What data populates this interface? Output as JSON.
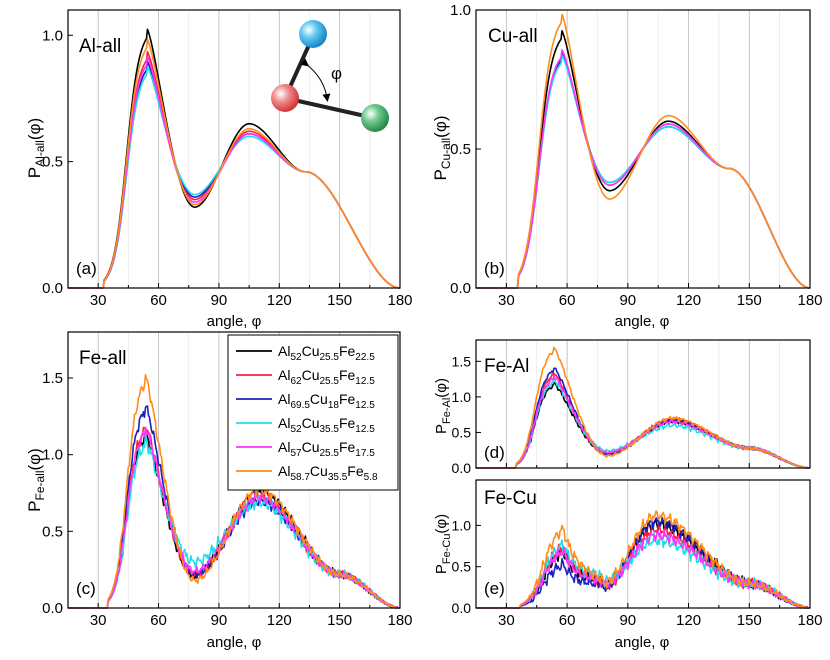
{
  "figure": {
    "colors": {
      "alloy_1": "#000000",
      "alloy_2": "#ff1f3a",
      "alloy_3": "#1f1fbf",
      "alloy_4": "#19e0e8",
      "alloy_5": "#ff33ff",
      "alloy_6": "#ff8c1a"
    },
    "legend_entries": [
      {
        "key": "alloy_1",
        "base": "Al",
        "sub1": "52",
        "mid1": "Cu",
        "sub2": "25.5",
        "mid2": "Fe",
        "sub3": "22.5"
      },
      {
        "key": "alloy_2",
        "base": "Al",
        "sub1": "62",
        "mid1": "Cu",
        "sub2": "25.5",
        "mid2": "Fe",
        "sub3": "12.5"
      },
      {
        "key": "alloy_3",
        "base": "Al",
        "sub1": "69.5",
        "mid1": "Cu",
        "sub2": "18",
        "mid2": "Fe",
        "sub3": "12.5"
      },
      {
        "key": "alloy_4",
        "base": "Al",
        "sub1": "52",
        "mid1": "Cu",
        "sub2": "35.5",
        "mid2": "Fe",
        "sub3": "12.5"
      },
      {
        "key": "alloy_5",
        "base": "Al",
        "sub1": "57",
        "mid1": "Cu",
        "sub2": "25.5",
        "mid2": "Fe",
        "sub3": "17.5"
      },
      {
        "key": "alloy_6",
        "base": "Al",
        "sub1": "58.7",
        "mid1": "Cu",
        "sub2": "35.5",
        "mid2": "Fe",
        "sub3": "5.8"
      }
    ],
    "inset_phi_label": "φ"
  },
  "chart_data": [
    {
      "id": "a",
      "type": "line",
      "panel_label": "(a)",
      "title": "Al-all",
      "xlabel": "angle, φ",
      "ylabel_main": "P",
      "ylabel_sub": "Al-all",
      "ylabel_tail": "(φ)",
      "xlim": [
        15,
        180
      ],
      "ylim": [
        0,
        1.1
      ],
      "xticks": [
        30,
        60,
        90,
        120,
        150,
        180
      ],
      "yticks": [
        0.0,
        0.5,
        1.0
      ],
      "ytick_labels": [
        "0.0",
        "0.5",
        "1.0"
      ],
      "shape": {
        "onset": 33,
        "rise_mid": 44,
        "rise_w": 3.2,
        "tail": 6,
        "p1x": 54,
        "p1w": 8,
        "p1n": 0,
        "trough": 78,
        "p2x": 105,
        "p2w": 12,
        "mid": 133,
        "tail_end": 178
      },
      "series": [
        {
          "key": "alloy_1",
          "name": "Al52Cu25.5Fe22.5",
          "peak1": 1.03,
          "trough": 0.32,
          "peak2": 0.65,
          "mid": 0.46,
          "noise": 0
        },
        {
          "key": "alloy_2",
          "name": "Al62Cu25.5Fe12.5",
          "peak1": 0.94,
          "trough": 0.35,
          "peak2": 0.62,
          "mid": 0.46,
          "noise": 0
        },
        {
          "key": "alloy_3",
          "name": "Al69.5Cu18Fe12.5",
          "peak1": 0.9,
          "trough": 0.36,
          "peak2": 0.61,
          "mid": 0.46,
          "noise": 0
        },
        {
          "key": "alloy_4",
          "name": "Al52Cu35.5Fe12.5",
          "peak1": 0.88,
          "trough": 0.37,
          "peak2": 0.6,
          "mid": 0.46,
          "noise": 0
        },
        {
          "key": "alloy_5",
          "name": "Al57Cu25.5Fe17.5",
          "peak1": 0.92,
          "trough": 0.34,
          "peak2": 0.61,
          "mid": 0.46,
          "noise": 0
        },
        {
          "key": "alloy_6",
          "name": "Al58.7Cu35.5Fe5.8",
          "peak1": 0.99,
          "trough": 0.33,
          "peak2": 0.63,
          "mid": 0.46,
          "noise": 0
        }
      ]
    },
    {
      "id": "b",
      "type": "line",
      "panel_label": "(b)",
      "title": "Cu-all",
      "xlabel": "angle, φ",
      "ylabel_main": "P",
      "ylabel_sub": "Cu-all",
      "ylabel_tail": "(φ)",
      "xlim": [
        15,
        180
      ],
      "ylim": [
        0,
        1.0
      ],
      "xticks": [
        30,
        60,
        90,
        120,
        150,
        180
      ],
      "yticks": [
        0.0,
        0.5,
        1.0
      ],
      "ytick_labels": [
        "0.0",
        "0.5",
        "1.0"
      ],
      "shape": {
        "onset": 36,
        "rise_mid": 46,
        "rise_w": 3.4,
        "tail": 6,
        "p1x": 57,
        "p1w": 8,
        "p1n": 0,
        "trough": 81,
        "p2x": 110,
        "p2w": 13,
        "mid": 140,
        "tail_end": 178
      },
      "series": [
        {
          "key": "alloy_1",
          "name": "Al52Cu25.5Fe22.5",
          "peak1": 0.93,
          "trough": 0.35,
          "peak2": 0.6,
          "mid": 0.43,
          "noise": 0
        },
        {
          "key": "alloy_2",
          "name": "Al62Cu25.5Fe12.5",
          "peak1": 0.86,
          "trough": 0.37,
          "peak2": 0.59,
          "mid": 0.43,
          "noise": 0
        },
        {
          "key": "alloy_3",
          "name": "Al69.5Cu18Fe12.5",
          "peak1": 0.85,
          "trough": 0.38,
          "peak2": 0.58,
          "mid": 0.43,
          "noise": 0
        },
        {
          "key": "alloy_4",
          "name": "Al52Cu35.5Fe12.5",
          "peak1": 0.84,
          "trough": 0.38,
          "peak2": 0.58,
          "mid": 0.43,
          "noise": 0
        },
        {
          "key": "alloy_5",
          "name": "Al57Cu25.5Fe17.5",
          "peak1": 0.86,
          "trough": 0.37,
          "peak2": 0.59,
          "mid": 0.43,
          "noise": 0
        },
        {
          "key": "alloy_6",
          "name": "Al58.7Cu35.5Fe5.8",
          "peak1": 0.99,
          "trough": 0.32,
          "peak2": 0.62,
          "mid": 0.43,
          "noise": 0
        }
      ]
    },
    {
      "id": "c",
      "type": "line",
      "panel_label": "(c)",
      "title": "Fe-all",
      "xlabel": "angle, φ",
      "ylabel_main": "P",
      "ylabel_sub": "Fe-all",
      "ylabel_tail": "(φ)",
      "xlim": [
        15,
        180
      ],
      "ylim": [
        0,
        1.8
      ],
      "xticks": [
        30,
        60,
        90,
        120,
        150,
        180
      ],
      "yticks": [
        0.0,
        0.5,
        1.0,
        1.5
      ],
      "ytick_labels": [
        "0.0",
        "0.5",
        "1.0",
        "1.5"
      ],
      "shape": {
        "onset": 35,
        "rise_mid": 44,
        "rise_w": 2.8,
        "tail": 6,
        "p1x": 53,
        "p1w": 6,
        "p1n": 0,
        "trough": 78,
        "p2x": 110,
        "p2w": 12,
        "mid": 150,
        "tail_end": 178
      },
      "series": [
        {
          "key": "alloy_1",
          "name": "Al52Cu25.5Fe22.5",
          "peak1": 1.15,
          "trough": 0.21,
          "peak2": 0.76,
          "mid": 0.22,
          "noise": 0.04
        },
        {
          "key": "alloy_2",
          "name": "Al62Cu25.5Fe12.5",
          "peak1": 1.2,
          "trough": 0.22,
          "peak2": 0.73,
          "mid": 0.22,
          "noise": 0.04
        },
        {
          "key": "alloy_3",
          "name": "Al69.5Cu18Fe12.5",
          "peak1": 1.33,
          "trough": 0.22,
          "peak2": 0.7,
          "mid": 0.22,
          "noise": 0.04
        },
        {
          "key": "alloy_4",
          "name": "Al52Cu35.5Fe12.5",
          "peak1": 1.1,
          "trough": 0.3,
          "peak2": 0.69,
          "mid": 0.22,
          "noise": 0.05
        },
        {
          "key": "alloy_5",
          "name": "Al57Cu25.5Fe17.5",
          "peak1": 1.18,
          "trough": 0.24,
          "peak2": 0.72,
          "mid": 0.22,
          "noise": 0.04
        },
        {
          "key": "alloy_6",
          "name": "Al58.7Cu35.5Fe5.8",
          "peak1": 1.52,
          "trough": 0.18,
          "peak2": 0.77,
          "mid": 0.22,
          "noise": 0.04
        }
      ]
    },
    {
      "id": "d",
      "type": "line",
      "panel_label": "(d)",
      "title": "Fe-Al",
      "xlabel": "",
      "ylabel_main": "P",
      "ylabel_sub": "Fe-Al",
      "ylabel_tail": "(φ)",
      "xlim": [
        15,
        180
      ],
      "ylim": [
        0,
        1.8
      ],
      "xticks": [
        30,
        60,
        90,
        120,
        150,
        180
      ],
      "yticks": [
        0.0,
        0.5,
        1.0,
        1.5
      ],
      "ytick_labels": [
        "0.0",
        "0.5",
        "1.0",
        "1.5"
      ],
      "shape": {
        "onset": 35,
        "rise_mid": 44,
        "rise_w": 2.8,
        "tail": 6,
        "p1x": 53,
        "p1w": 6,
        "p1n": 0,
        "trough": 80,
        "p2x": 112,
        "p2w": 13,
        "mid": 150,
        "tail_end": 178
      },
      "series": [
        {
          "key": "alloy_1",
          "name": "Al52Cu25.5Fe22.5",
          "peak1": 1.2,
          "trough": 0.2,
          "peak2": 0.66,
          "mid": 0.28,
          "noise": 0.03
        },
        {
          "key": "alloy_2",
          "name": "Al62Cu25.5Fe12.5",
          "peak1": 1.35,
          "trough": 0.2,
          "peak2": 0.68,
          "mid": 0.28,
          "noise": 0.03
        },
        {
          "key": "alloy_3",
          "name": "Al69.5Cu18Fe12.5",
          "peak1": 1.42,
          "trough": 0.2,
          "peak2": 0.67,
          "mid": 0.28,
          "noise": 0.03
        },
        {
          "key": "alloy_4",
          "name": "Al52Cu35.5Fe12.5",
          "peak1": 1.25,
          "trough": 0.24,
          "peak2": 0.6,
          "mid": 0.28,
          "noise": 0.04
        },
        {
          "key": "alloy_5",
          "name": "Al57Cu25.5Fe17.5",
          "peak1": 1.3,
          "trough": 0.22,
          "peak2": 0.65,
          "mid": 0.28,
          "noise": 0.03
        },
        {
          "key": "alloy_6",
          "name": "Al58.7Cu35.5Fe5.8",
          "peak1": 1.7,
          "trough": 0.17,
          "peak2": 0.7,
          "mid": 0.28,
          "noise": 0.03
        }
      ]
    },
    {
      "id": "e",
      "type": "line",
      "panel_label": "(e)",
      "title": "Fe-Cu",
      "xlabel": "angle, φ",
      "ylabel_main": "P",
      "ylabel_sub": "Fe-Cu",
      "ylabel_tail": "(φ)",
      "xlim": [
        15,
        180
      ],
      "ylim": [
        0,
        1.55
      ],
      "xticks": [
        30,
        60,
        90,
        120,
        150,
        180
      ],
      "yticks": [
        0.0,
        0.5,
        1.0
      ],
      "ytick_labels": [
        "0.0",
        "0.5",
        "1.0"
      ],
      "shape": {
        "onset": 37,
        "rise_mid": 48,
        "rise_w": 3.5,
        "tail": 6,
        "p1x": 57,
        "p1w": 6,
        "p1n": 1,
        "trough": 78,
        "p2x": 104,
        "p2w": 13,
        "mid": 150,
        "tail_end": 178
      },
      "series": [
        {
          "key": "alloy_1",
          "name": "Al52Cu25.5Fe22.5",
          "peak1": 0.72,
          "trough": 0.28,
          "peak2": 1.02,
          "mid": 0.3,
          "noise": 0.08
        },
        {
          "key": "alloy_2",
          "name": "Al62Cu25.5Fe12.5",
          "peak1": 0.78,
          "trough": 0.26,
          "peak2": 0.95,
          "mid": 0.3,
          "noise": 0.08
        },
        {
          "key": "alloy_3",
          "name": "Al69.5Cu18Fe12.5",
          "peak1": 0.55,
          "trough": 0.24,
          "peak2": 1.05,
          "mid": 0.3,
          "noise": 0.08
        },
        {
          "key": "alloy_4",
          "name": "Al52Cu35.5Fe12.5",
          "peak1": 0.8,
          "trough": 0.33,
          "peak2": 0.82,
          "mid": 0.3,
          "noise": 0.09
        },
        {
          "key": "alloy_5",
          "name": "Al57Cu25.5Fe17.5",
          "peak1": 0.72,
          "trough": 0.28,
          "peak2": 0.88,
          "mid": 0.3,
          "noise": 0.08
        },
        {
          "key": "alloy_6",
          "name": "Al58.7Cu35.5Fe5.8",
          "peak1": 1.0,
          "trough": 0.3,
          "peak2": 1.12,
          "mid": 0.3,
          "noise": 0.08
        }
      ]
    }
  ]
}
